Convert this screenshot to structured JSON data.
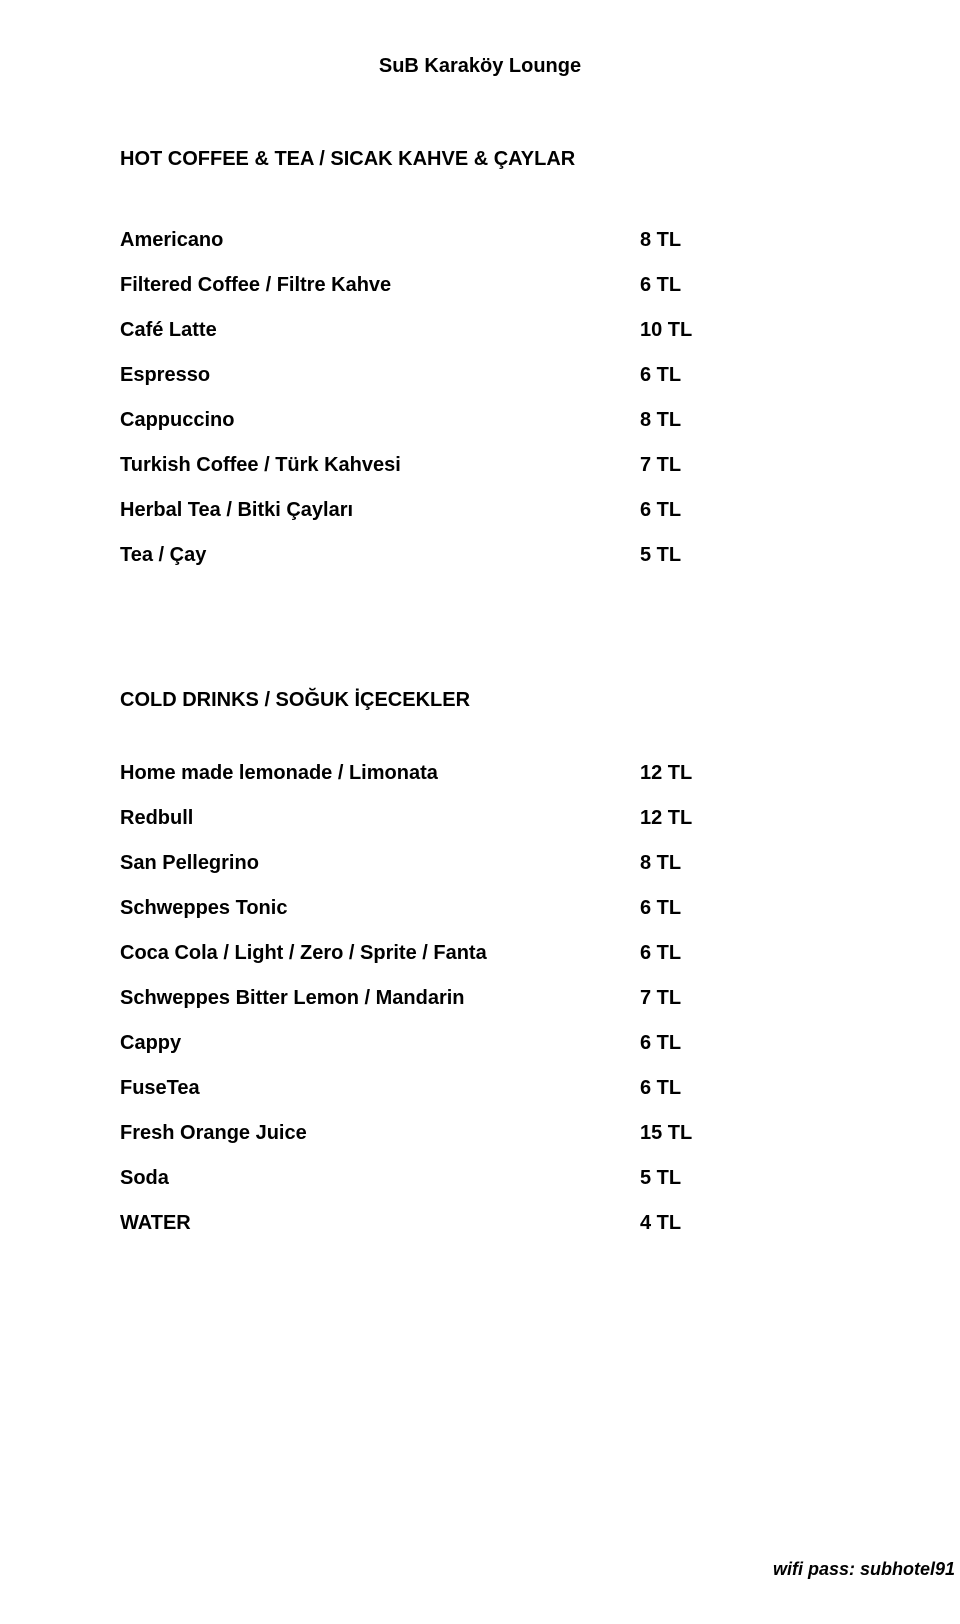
{
  "title": "SuB Karaköy Lounge",
  "sections": {
    "hot": {
      "heading": "HOT COFFEE & TEA / SICAK KAHVE & ÇAYLAR",
      "items": [
        {
          "label": "Americano",
          "price": "8 TL"
        },
        {
          "label": "Filtered Coffee / Filtre Kahve",
          "price": "6 TL"
        },
        {
          "label": "Café Latte",
          "price": "10 TL"
        },
        {
          "label": "Espresso",
          "price": "6 TL"
        },
        {
          "label": "Cappuccino",
          "price": "8 TL"
        },
        {
          "label": "Turkish Coffee  / Türk Kahvesi",
          "price": "7 TL"
        },
        {
          "label": "Herbal Tea / Bitki Çayları",
          "price": "6 TL"
        },
        {
          "label": "Tea / Çay",
          "price": "5 TL"
        }
      ]
    },
    "cold": {
      "heading": "COLD DRINKS  / SOĞUK İÇECEKLER",
      "items": [
        {
          "label": "Home made lemonade / Limonata",
          "price": "12 TL"
        },
        {
          "label": "Redbull",
          "price": "12 TL"
        },
        {
          "label": "San Pellegrino",
          "price": "8 TL"
        },
        {
          "label": "Schweppes Tonic",
          "price": "6 TL"
        },
        {
          "label": "Coca Cola / Light / Zero / Sprite / Fanta",
          "price": "6 TL"
        },
        {
          "label": "Schweppes Bitter Lemon / Mandarin",
          "price": "7 TL"
        },
        {
          "label": "Cappy",
          "price": "6 TL"
        },
        {
          "label": "FuseTea",
          "price": "6 TL"
        },
        {
          "label": "Fresh Orange Juice",
          "price": "15 TL"
        },
        {
          "label": "Soda",
          "price": "5 TL"
        },
        {
          "label": "WATER",
          "price": "4 TL"
        }
      ]
    }
  },
  "footer": "wifi pass: subhotel91"
}
